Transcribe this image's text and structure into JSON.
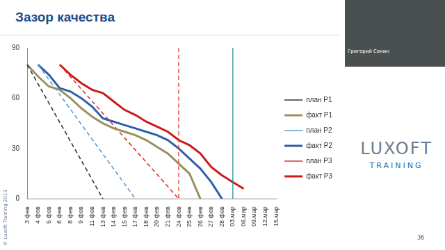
{
  "slide": {
    "title": "Зазор качества",
    "presenter": "Григорий Сенин",
    "logo": [
      "LUXOFT",
      "TRAINING"
    ],
    "footer": "© Luxoft Training 2013",
    "page": "36"
  },
  "chart_data": {
    "type": "line",
    "categories": [
      "3 фев",
      "4 фев",
      "5 фев",
      "6 фев",
      "8 фев",
      "9 фев",
      "11 фев",
      "13 фев",
      "14 фев",
      "15 фев",
      "17 фев",
      "18 фев",
      "20 фев",
      "21 фев",
      "24 фев",
      "25 фев",
      "26 фев",
      "27 фев",
      "28 фев",
      "03.мар",
      "06.мар",
      "09.мар",
      "12.мар",
      "15.мар"
    ],
    "ylim": [
      0,
      90
    ],
    "yticks": [
      0,
      30,
      60,
      90
    ],
    "grid": false,
    "legend": "right",
    "series": [
      {
        "name": "план P1",
        "color": "#333333",
        "line_style": "dashed",
        "values": [
          80,
          null,
          null,
          null,
          null,
          null,
          null,
          0,
          null,
          null,
          null,
          null,
          null,
          null,
          null,
          null,
          null,
          null,
          null,
          null,
          null,
          null,
          null,
          null
        ]
      },
      {
        "name": "факт P1",
        "color": "#9c8f5e",
        "line_style": "solid",
        "values": [
          80,
          73,
          67,
          65,
          60,
          54,
          49,
          45,
          42,
          40,
          38,
          35,
          31,
          27,
          21,
          15,
          0,
          null,
          null,
          null,
          null,
          null,
          null,
          null
        ]
      },
      {
        "name": "план P2",
        "color": "#5b9bd5",
        "line_style": "dashed",
        "values": [
          null,
          80,
          null,
          null,
          null,
          null,
          null,
          null,
          null,
          null,
          0,
          null,
          null,
          null,
          null,
          null,
          null,
          null,
          null,
          null,
          null,
          null,
          null,
          null
        ]
      },
      {
        "name": "факт P2",
        "color": "#2e5fa8",
        "line_style": "solid",
        "values": [
          null,
          80,
          74,
          66,
          64,
          60,
          55,
          48,
          46,
          44,
          42,
          40,
          38,
          35,
          30,
          24,
          18,
          10,
          0,
          null,
          null,
          null,
          null,
          null
        ]
      },
      {
        "name": "план P3",
        "color": "#e0302a",
        "line_style": "dashed",
        "values": [
          null,
          null,
          null,
          80,
          null,
          null,
          null,
          null,
          null,
          null,
          null,
          null,
          null,
          null,
          0,
          null,
          null,
          null,
          null,
          null,
          null,
          null,
          null,
          null
        ]
      },
      {
        "name": "факт P3",
        "color": "#cc1a1a",
        "line_style": "solid",
        "values": [
          null,
          null,
          null,
          80,
          74,
          69,
          65,
          63,
          58,
          53,
          50,
          46,
          43,
          40,
          35,
          32,
          27,
          19,
          14,
          10,
          6,
          null,
          null,
          null
        ]
      }
    ],
    "vertical_lines": [
      {
        "x": "24 фев",
        "color": "#e0302a",
        "line_style": "dashed"
      },
      {
        "x": "03.мар",
        "color": "#2a8fa0",
        "line_style": "solid"
      }
    ]
  }
}
